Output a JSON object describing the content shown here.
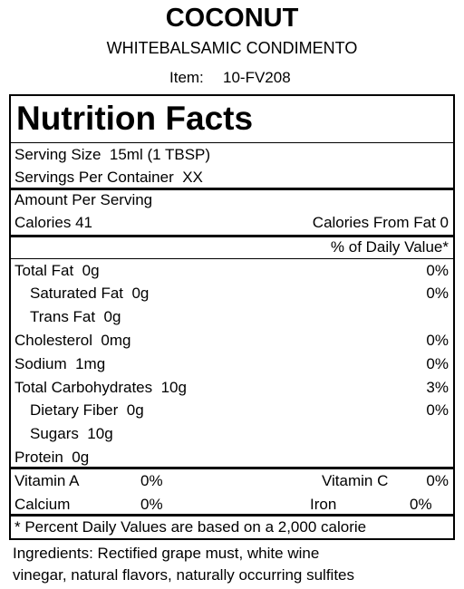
{
  "header": {
    "title": "COCONUT",
    "subtitle": "WHITEBALSAMIC CONDIMENTO",
    "item_label": "Item:",
    "item_value": "10-FV208"
  },
  "panel": {
    "title": "Nutrition Facts",
    "serving_size": "Serving Size  15ml (1 TBSP)",
    "servings_per_container": "Servings Per Container  XX",
    "amount_per_serving": "Amount Per Serving",
    "calories": "Calories 41",
    "calories_from_fat": "Calories From Fat 0",
    "daily_value_header": "% of Daily Value*",
    "nutrients": [
      {
        "label": "Total Fat  0g",
        "dv": "0%"
      },
      {
        "label": "Saturated Fat  0g",
        "dv": "0%"
      },
      {
        "label": "Trans Fat  0g",
        "dv": null
      },
      {
        "label": "Cholesterol  0mg",
        "dv": "0%"
      },
      {
        "label": "Sodium  1mg",
        "dv": "0%"
      },
      {
        "label": "Total Carbohydrates  10g",
        "dv": "3%"
      },
      {
        "label": "Dietary Fiber  0g",
        "dv": "0%"
      },
      {
        "label": "Sugars  10g",
        "dv": null
      },
      {
        "label": "Protein  0g",
        "dv": null
      }
    ],
    "vitamins": [
      [
        {
          "name": "Vitamin A",
          "value": "0%"
        },
        {
          "name": "Vitamin C",
          "value": "0%"
        }
      ],
      [
        {
          "name": "Calcium",
          "value": "0%"
        },
        {
          "name": "Iron",
          "value": "0%"
        }
      ]
    ],
    "footnote": "* Percent Daily Values are based on a 2,000 calorie"
  },
  "ingredients": [
    "Ingredients: Rectified grape must, white wine",
    "vinegar, natural flavors, naturally occurring sulfites"
  ]
}
